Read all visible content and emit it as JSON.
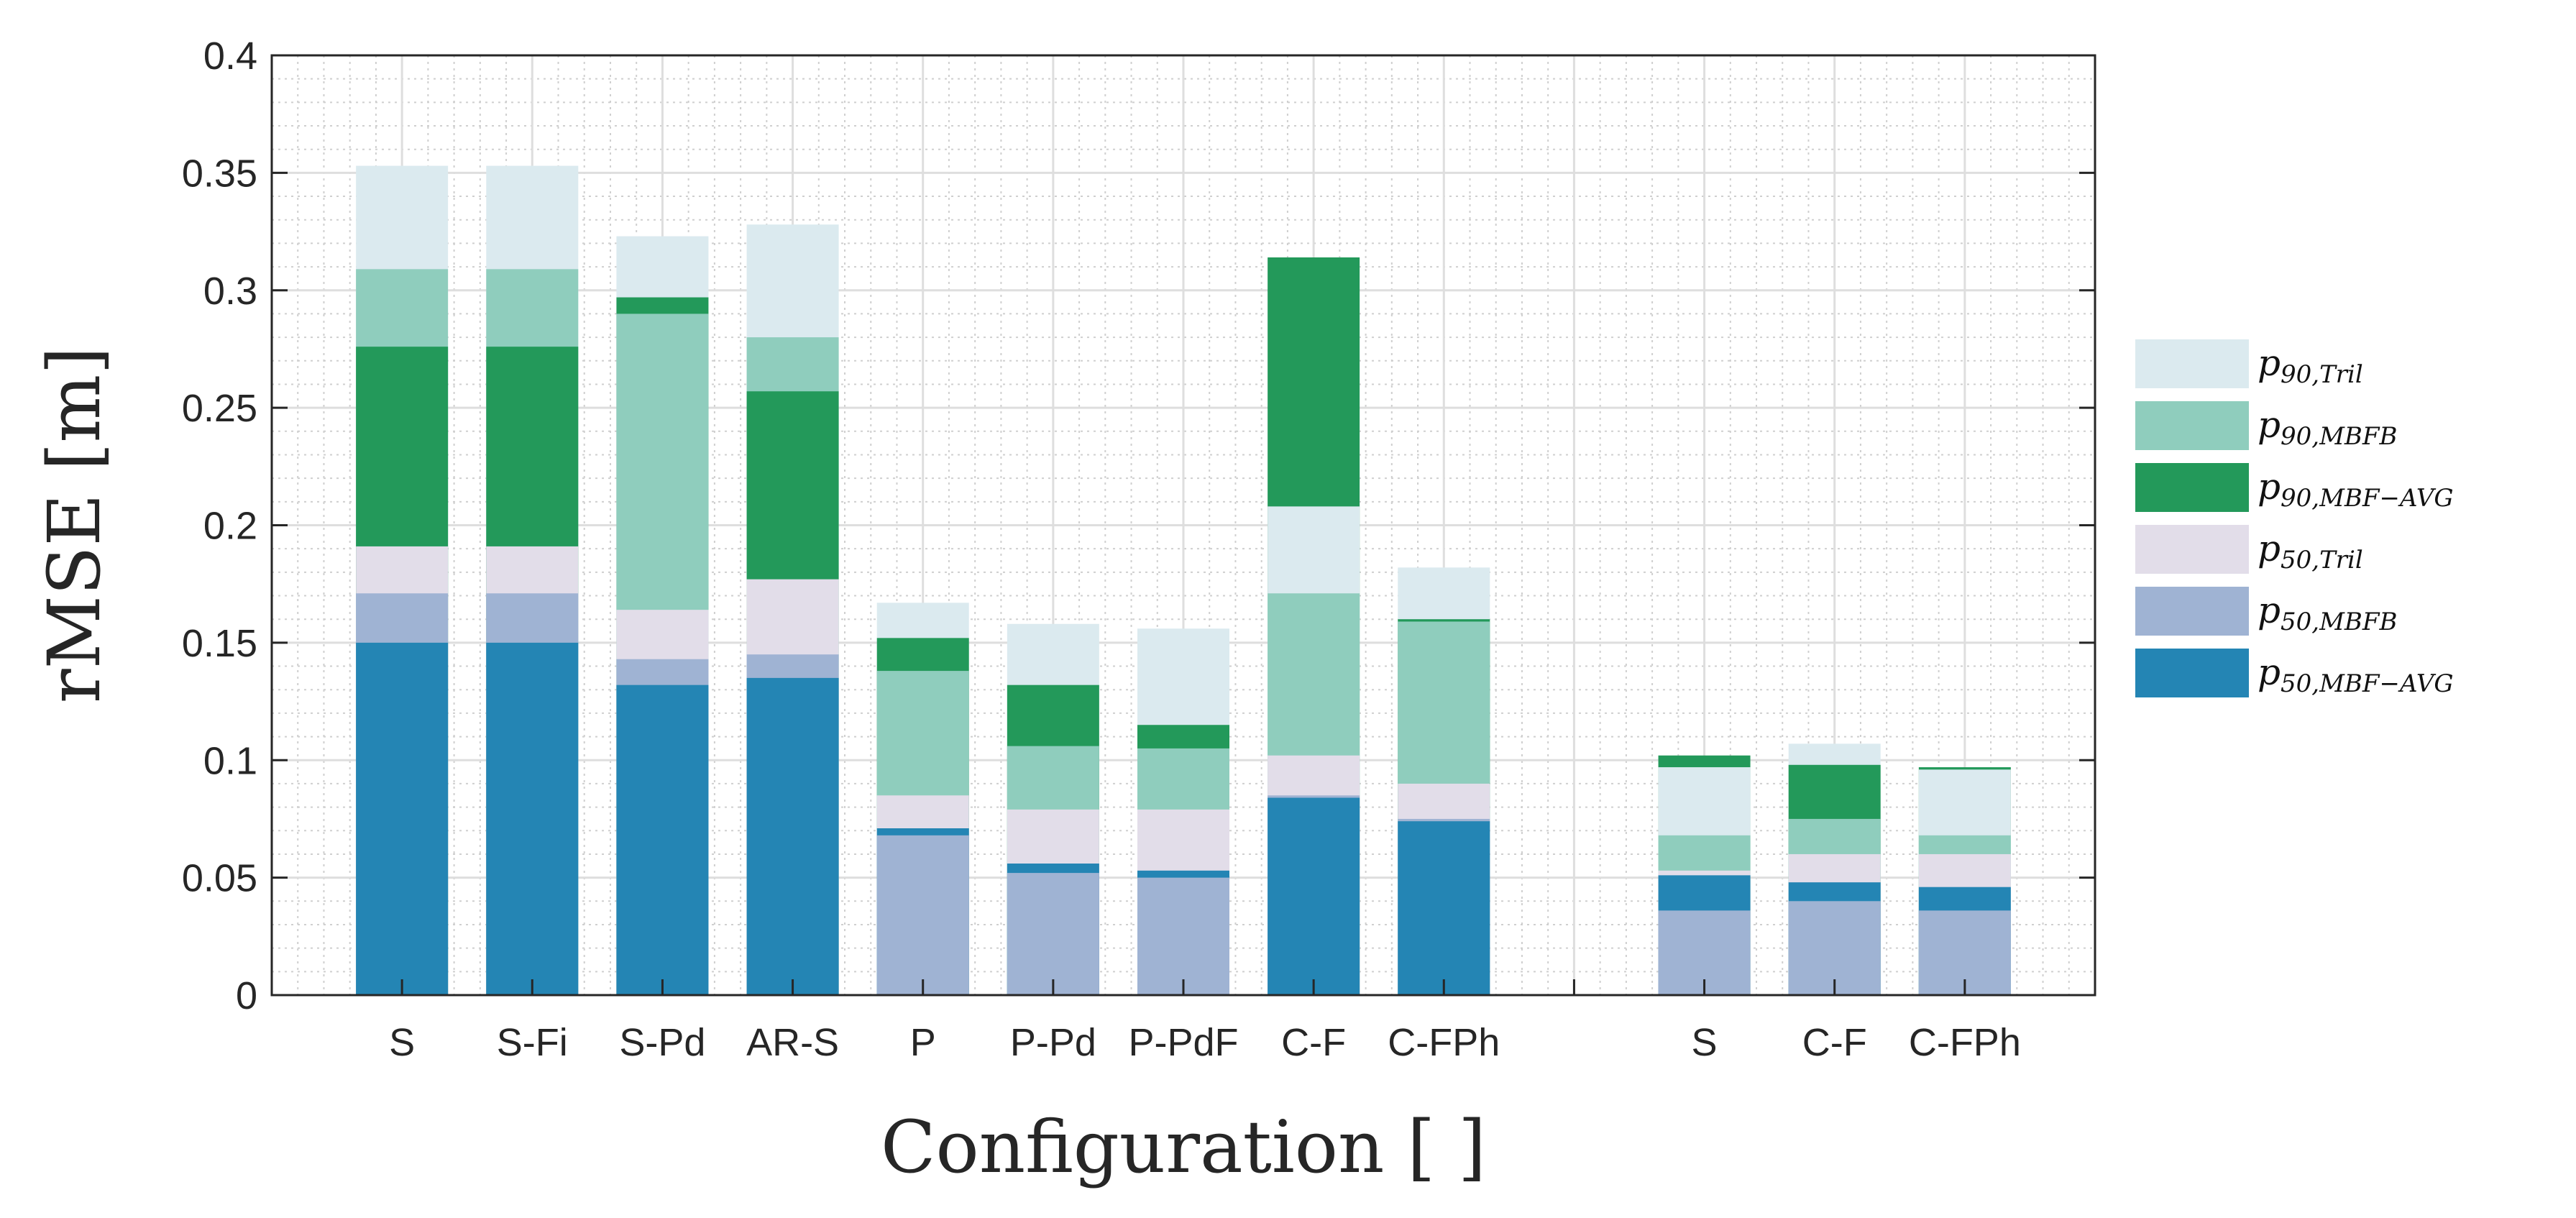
{
  "chart_data": {
    "type": "bar",
    "stacked": true,
    "xlabel": "Configuration [ ]",
    "ylabel": "rMSE [m]",
    "ylim": [
      0,
      0.4
    ],
    "yticks": [
      0,
      0.05,
      0.1,
      0.15,
      0.2,
      0.25,
      0.3,
      0.35,
      0.4
    ],
    "ytick_labels": [
      "0",
      "0.05",
      "0.1",
      "0.15",
      "0.2",
      "0.25",
      "0.3",
      "0.35",
      "0.4"
    ],
    "grid": "on (major + minor)",
    "legend_position": "right",
    "categories": [
      "S",
      "S-Fi",
      "S-Pd",
      "AR-S",
      "P",
      "P-Pd",
      "P-PdF",
      "C-F",
      "C-FPh",
      "",
      "S",
      "C-F",
      "C-FPh"
    ],
    "series": [
      {
        "key": "p50_mbf_avg",
        "base": "p",
        "sub": "50,MBF−AVG",
        "color": "#2485b4"
      },
      {
        "key": "p50_mbfb",
        "base": "p",
        "sub": "50,MBFB",
        "color": "#9fb3d3"
      },
      {
        "key": "p50_tril",
        "base": "p",
        "sub": "50,Tril",
        "color": "#e2dde9"
      },
      {
        "key": "p90_mbf_avg",
        "base": "p",
        "sub": "90,MBF−AVG",
        "color": "#23995a"
      },
      {
        "key": "p90_mbfb",
        "base": "p",
        "sub": "90,MBFB",
        "color": "#8fcdbd"
      },
      {
        "key": "p90_tril",
        "base": "p",
        "sub": "90,Tril",
        "color": "#dbeaef"
      }
    ],
    "legend_order": [
      "p90_tril",
      "p90_mbfb",
      "p90_mbf_avg",
      "p50_tril",
      "p50_mbfb",
      "p50_mbf_avg"
    ],
    "bars": [
      {
        "label": "S",
        "segments": [
          [
            "p50_mbf_avg",
            0.15
          ],
          [
            "p50_mbfb",
            0.171
          ],
          [
            "p50_tril",
            0.191
          ],
          [
            "p90_mbf_avg",
            0.276
          ],
          [
            "p90_mbfb",
            0.309
          ],
          [
            "p90_tril",
            0.353
          ]
        ]
      },
      {
        "label": "S-Fi",
        "segments": [
          [
            "p50_mbf_avg",
            0.15
          ],
          [
            "p50_mbfb",
            0.171
          ],
          [
            "p50_tril",
            0.191
          ],
          [
            "p90_mbf_avg",
            0.276
          ],
          [
            "p90_mbfb",
            0.309
          ],
          [
            "p90_tril",
            0.353
          ]
        ]
      },
      {
        "label": "S-Pd",
        "segments": [
          [
            "p50_mbf_avg",
            0.132
          ],
          [
            "p50_mbfb",
            0.143
          ],
          [
            "p50_tril",
            0.164
          ],
          [
            "p90_mbfb",
            0.29
          ],
          [
            "p90_mbf_avg",
            0.297
          ],
          [
            "p90_tril",
            0.323
          ]
        ]
      },
      {
        "label": "AR-S",
        "segments": [
          [
            "p50_mbf_avg",
            0.135
          ],
          [
            "p50_mbfb",
            0.145
          ],
          [
            "p50_tril",
            0.177
          ],
          [
            "p90_mbf_avg",
            0.257
          ],
          [
            "p90_mbfb",
            0.28
          ],
          [
            "p90_tril",
            0.328
          ]
        ]
      },
      {
        "label": "P",
        "segments": [
          [
            "p50_mbfb",
            0.068
          ],
          [
            "p50_mbf_avg",
            0.071
          ],
          [
            "p50_tril",
            0.085
          ],
          [
            "p90_mbfb",
            0.138
          ],
          [
            "p90_mbf_avg",
            0.152
          ],
          [
            "p90_tril",
            0.167
          ]
        ]
      },
      {
        "label": "P-Pd",
        "segments": [
          [
            "p50_mbfb",
            0.052
          ],
          [
            "p50_mbf_avg",
            0.056
          ],
          [
            "p50_tril",
            0.079
          ],
          [
            "p90_mbfb",
            0.106
          ],
          [
            "p90_mbf_avg",
            0.132
          ],
          [
            "p90_tril",
            0.158
          ]
        ]
      },
      {
        "label": "P-PdF",
        "segments": [
          [
            "p50_mbfb",
            0.05
          ],
          [
            "p50_mbf_avg",
            0.053
          ],
          [
            "p50_tril",
            0.079
          ],
          [
            "p90_mbfb",
            0.105
          ],
          [
            "p90_mbf_avg",
            0.115
          ],
          [
            "p90_tril",
            0.156
          ]
        ]
      },
      {
        "label": "C-F",
        "segments": [
          [
            "p50_mbf_avg",
            0.084
          ],
          [
            "p50_mbfb",
            0.085
          ],
          [
            "p50_tril",
            0.102
          ],
          [
            "p90_mbfb",
            0.171
          ],
          [
            "p90_tril",
            0.208
          ],
          [
            "p90_mbf_avg",
            0.314
          ]
        ]
      },
      {
        "label": "C-FPh",
        "segments": [
          [
            "p50_mbf_avg",
            0.074
          ],
          [
            "p50_mbfb",
            0.075
          ],
          [
            "p50_tril",
            0.09
          ],
          [
            "p90_mbfb",
            0.159
          ],
          [
            "p90_mbf_avg",
            0.16
          ],
          [
            "p90_tril",
            0.182
          ]
        ]
      },
      {
        "label": "",
        "segments": []
      },
      {
        "label": "S",
        "segments": [
          [
            "p50_mbfb",
            0.036
          ],
          [
            "p50_mbf_avg",
            0.051
          ],
          [
            "p50_tril",
            0.053
          ],
          [
            "p90_mbfb",
            0.068
          ],
          [
            "p90_tril",
            0.097
          ],
          [
            "p90_mbf_avg",
            0.102
          ]
        ]
      },
      {
        "label": "C-F",
        "segments": [
          [
            "p50_mbfb",
            0.04
          ],
          [
            "p50_mbf_avg",
            0.048
          ],
          [
            "p50_tril",
            0.06
          ],
          [
            "p90_mbfb",
            0.075
          ],
          [
            "p90_mbf_avg",
            0.098
          ],
          [
            "p90_tril",
            0.107
          ]
        ]
      },
      {
        "label": "C-FPh",
        "segments": [
          [
            "p50_mbfb",
            0.036
          ],
          [
            "p50_mbf_avg",
            0.046
          ],
          [
            "p50_tril",
            0.06
          ],
          [
            "p90_mbfb",
            0.068
          ],
          [
            "p90_tril",
            0.096
          ],
          [
            "p90_mbf_avg",
            0.097
          ]
        ]
      }
    ]
  }
}
